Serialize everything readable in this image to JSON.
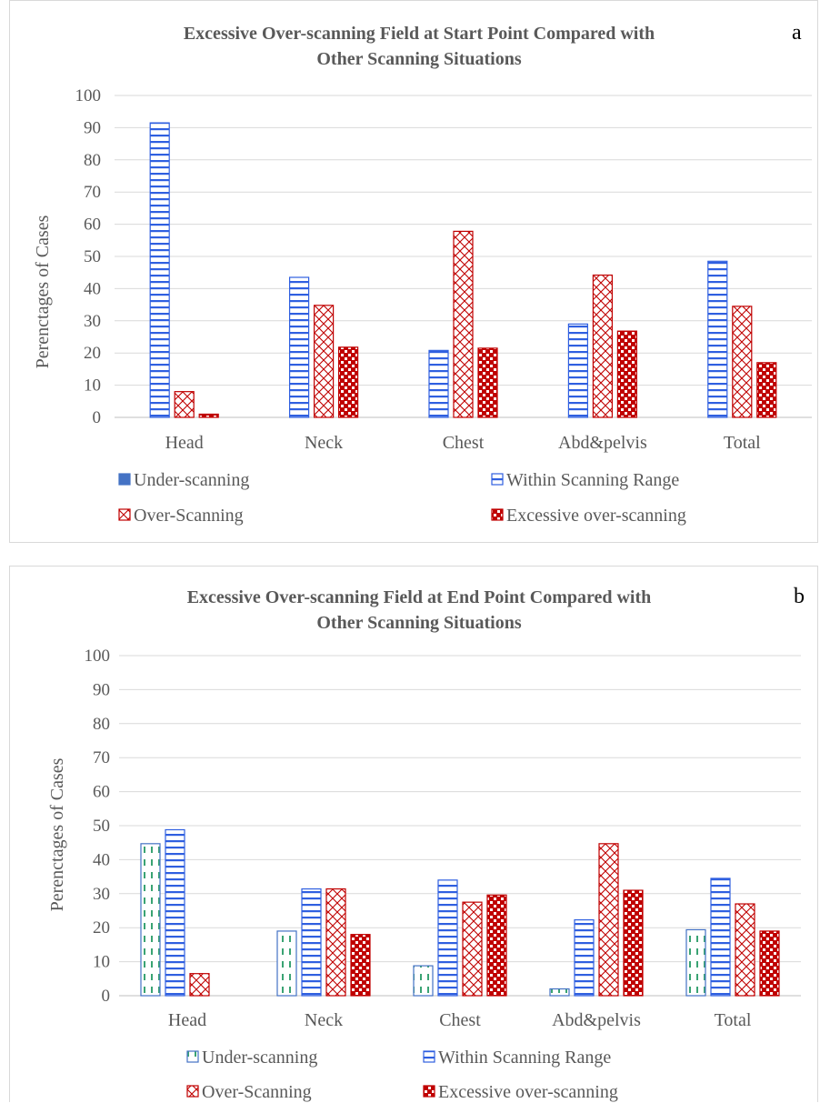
{
  "chart_data": [
    {
      "type": "bar",
      "panel_letter": "a",
      "title_lines": [
        "Excessive Over-scanning Field at Start Point Compared with",
        "Other Scanning Situations"
      ],
      "ylabel": "Perenctages of Cases",
      "xlabel": "",
      "ylim": [
        0,
        100
      ],
      "yticks": [
        0,
        10,
        20,
        30,
        40,
        50,
        60,
        70,
        80,
        90,
        100
      ],
      "grid": true,
      "legend_position": "bottom",
      "categories": [
        "Head",
        "Neck",
        "Chest",
        "Abd&pelvis",
        "Total"
      ],
      "series": [
        {
          "name": "Under-scanning",
          "pattern": "solid-blue",
          "values": [
            0,
            0,
            0,
            0,
            0
          ]
        },
        {
          "name": "Within Scanning Range",
          "pattern": "horizontal-blue",
          "values": [
            91.5,
            43.5,
            20.8,
            29,
            48.5
          ]
        },
        {
          "name": "Over-Scanning",
          "pattern": "crosshatch-red",
          "values": [
            8,
            34.8,
            57.8,
            44.2,
            34.5
          ]
        },
        {
          "name": "Excessive over-scanning",
          "pattern": "checker-red",
          "values": [
            1,
            21.8,
            21.5,
            26.8,
            17
          ]
        }
      ]
    },
    {
      "type": "bar",
      "panel_letter": "b",
      "title_lines": [
        "Excessive Over-scanning Field at End Point Compared with",
        "Other Scanning Situations"
      ],
      "ylabel": "Perenctages of Cases",
      "xlabel": "",
      "ylim": [
        0,
        100
      ],
      "yticks": [
        0,
        10,
        20,
        30,
        40,
        50,
        60,
        70,
        80,
        90,
        100
      ],
      "grid": true,
      "legend_position": "bottom",
      "categories": [
        "Head",
        "Neck",
        "Chest",
        "Abd&pelvis",
        "Total"
      ],
      "series": [
        {
          "name": "Under-scanning",
          "pattern": "dashed-green",
          "values": [
            44.7,
            19,
            8.8,
            2,
            19.4
          ]
        },
        {
          "name": "Within Scanning Range",
          "pattern": "horizontal-blue",
          "values": [
            48.8,
            31.4,
            34,
            22.3,
            34.5
          ]
        },
        {
          "name": "Over-Scanning",
          "pattern": "crosshatch-red",
          "values": [
            6.5,
            31.4,
            27.5,
            44.7,
            27
          ]
        },
        {
          "name": "Excessive over-scanning",
          "pattern": "checker-red",
          "values": [
            0,
            18,
            29.6,
            31,
            19
          ]
        }
      ]
    }
  ],
  "colors": {
    "blue": "#4472c4",
    "blue_stripe": "#2f5fe0",
    "red": "#c00000",
    "green": "#3aa373",
    "gridline": "#d9d9d9",
    "axis": "#bfbfbf",
    "text": "#595959"
  }
}
